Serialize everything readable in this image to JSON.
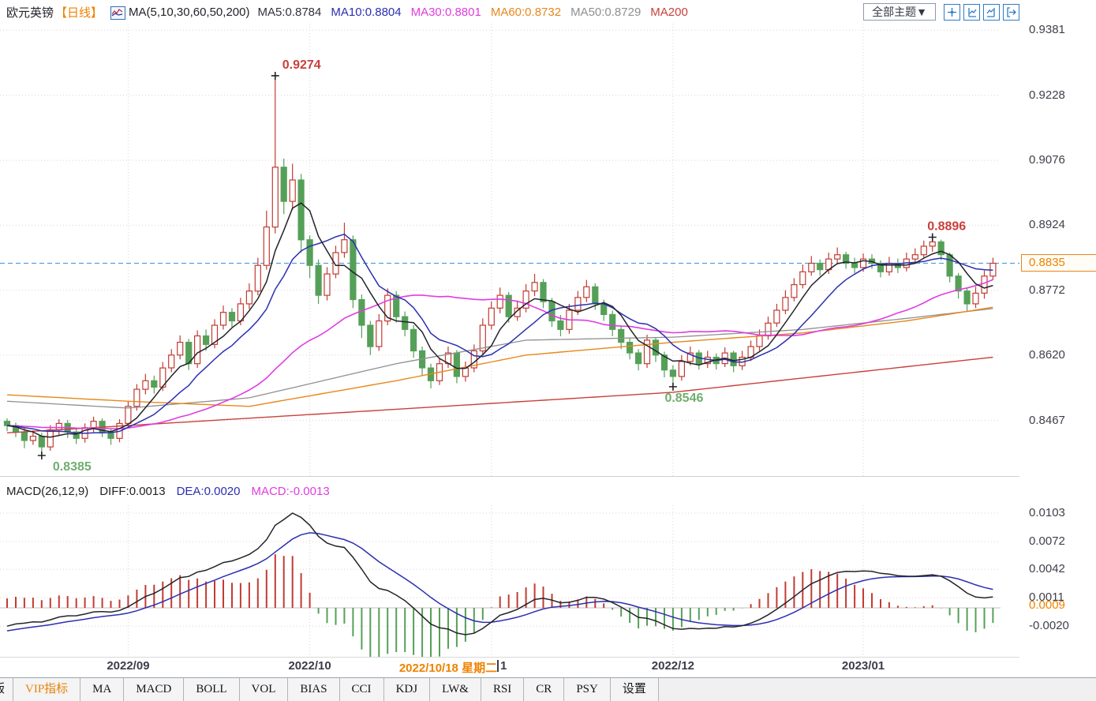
{
  "header": {
    "symbol": "欧元英镑",
    "period": "【日线】",
    "ma_settings": "MA(5,10,30,60,50,200)",
    "ma_values": [
      {
        "label": "MA5:0.8784",
        "color": "#33343a"
      },
      {
        "label": "MA10:0.8804",
        "color": "#2b2fb0"
      },
      {
        "label": "MA30:0.8801",
        "color": "#e03ce0"
      },
      {
        "label": "MA60:0.8732",
        "color": "#e8871c"
      },
      {
        "label": "MA50:0.8729",
        "color": "#8f8f8f"
      },
      {
        "label": "MA200",
        "color": "#c8403a"
      }
    ],
    "theme_dropdown": "全部主题▼",
    "icons": [
      "crosshair-tool",
      "y-axis-left",
      "y-axis-right",
      "export"
    ]
  },
  "price_axis": {
    "labels": [
      "0.9381",
      "0.9228",
      "0.9076",
      "0.8924",
      "0.8772",
      "0.8620",
      "0.8467"
    ],
    "current": "0.8835"
  },
  "macd_panel": {
    "title": "MACD(26,12,9)",
    "diff_label": "DIFF:0.0013",
    "dea_label": "DEA:0.0020",
    "macd_label": "MACD:-0.0013",
    "diff_color": "#23242a",
    "dea_color": "#2b2fb0",
    "macd_color": "#e03ce0",
    "axis_labels": [
      "0.0103",
      "0.0072",
      "0.0042",
      "0.0011",
      "-0.0020"
    ],
    "current": "0.0009"
  },
  "x_axis": {
    "crosshair_date": "2022/10/18 星期二",
    "occluded_remnant": "1"
  },
  "toolbar": {
    "partial_tab": "版",
    "tabs": [
      "VIP指标",
      "MA",
      "MACD",
      "BOLL",
      "VOL",
      "BIAS",
      "CCI",
      "KDJ",
      "LW&",
      "RSI",
      "CR",
      "PSY",
      "设置"
    ],
    "active_tab": "VIP指标"
  },
  "chart_data": {
    "type": "candlestick_with_macd",
    "symbol": "EUR/GBP 欧元英镑",
    "timeframe": "日线 (daily)",
    "price_axis_ticks": [
      0.9381,
      0.9228,
      0.9076,
      0.8924,
      0.8772,
      0.862,
      0.8467
    ],
    "current_price": 0.8835,
    "high_annotation": 0.9274,
    "swing_high_annotation": 0.8896,
    "swing_low_annotation": 0.8546,
    "low_annotation": 0.8385,
    "month_ticks": [
      {
        "label": "2022/09",
        "index": 14,
        "occluded": false
      },
      {
        "label": "2022/10",
        "index": 35,
        "occluded": false
      },
      {
        "label": "2022/11",
        "index": 56,
        "occluded": true
      },
      {
        "label": "2022/12",
        "index": 77,
        "occluded": false
      },
      {
        "label": "2023/01",
        "index": 99,
        "occluded": false
      }
    ],
    "crosshair": {
      "label": "2022/10/18 星期二",
      "index": 51
    },
    "annotations": [
      {
        "text": "0.9274",
        "value": 0.9274,
        "index": 31,
        "color": "#c8403a",
        "position": "above"
      },
      {
        "text": "0.8896",
        "value": 0.8896,
        "index": 107,
        "color": "#c8403a",
        "position": "above"
      },
      {
        "text": "0.8546",
        "value": 0.8546,
        "index": 77,
        "color": "#6fae6f",
        "position": "below"
      },
      {
        "text": "0.8385",
        "value": 0.8385,
        "index": 4,
        "color": "#6fae6f",
        "position": "below"
      }
    ],
    "candles": [
      [
        0.8465,
        0.8472,
        0.8442,
        0.8455
      ],
      [
        0.8455,
        0.8462,
        0.8428,
        0.844
      ],
      [
        0.844,
        0.845,
        0.8402,
        0.842
      ],
      [
        0.842,
        0.8444,
        0.841,
        0.843
      ],
      [
        0.843,
        0.8438,
        0.8385,
        0.8405
      ],
      [
        0.8405,
        0.8456,
        0.8396,
        0.8445
      ],
      [
        0.8445,
        0.847,
        0.8432,
        0.846
      ],
      [
        0.846,
        0.8468,
        0.8426,
        0.844
      ],
      [
        0.844,
        0.845,
        0.8412,
        0.8425
      ],
      [
        0.8425,
        0.846,
        0.8415,
        0.845
      ],
      [
        0.845,
        0.8476,
        0.844,
        0.8465
      ],
      [
        0.8465,
        0.8472,
        0.8428,
        0.844
      ],
      [
        0.844,
        0.8448,
        0.841,
        0.8425
      ],
      [
        0.8425,
        0.847,
        0.8416,
        0.846
      ],
      [
        0.846,
        0.8512,
        0.845,
        0.85
      ],
      [
        0.85,
        0.8552,
        0.849,
        0.854
      ],
      [
        0.854,
        0.8576,
        0.8528,
        0.856
      ],
      [
        0.856,
        0.8572,
        0.853,
        0.8545
      ],
      [
        0.8545,
        0.8604,
        0.8536,
        0.859
      ],
      [
        0.859,
        0.8634,
        0.858,
        0.862
      ],
      [
        0.862,
        0.8666,
        0.861,
        0.865
      ],
      [
        0.865,
        0.8658,
        0.8585,
        0.86
      ],
      [
        0.86,
        0.8678,
        0.859,
        0.8665
      ],
      [
        0.8665,
        0.868,
        0.863,
        0.8645
      ],
      [
        0.8645,
        0.8704,
        0.8636,
        0.869
      ],
      [
        0.869,
        0.8736,
        0.868,
        0.872
      ],
      [
        0.872,
        0.873,
        0.8686,
        0.87
      ],
      [
        0.87,
        0.8754,
        0.869,
        0.874
      ],
      [
        0.874,
        0.8788,
        0.8728,
        0.877
      ],
      [
        0.877,
        0.8848,
        0.876,
        0.883
      ],
      [
        0.883,
        0.8958,
        0.882,
        0.892
      ],
      [
        0.892,
        0.9274,
        0.8905,
        0.906
      ],
      [
        0.906,
        0.908,
        0.895,
        0.898
      ],
      [
        0.898,
        0.9068,
        0.896,
        0.903
      ],
      [
        0.903,
        0.9044,
        0.886,
        0.889
      ],
      [
        0.889,
        0.89,
        0.88,
        0.883
      ],
      [
        0.883,
        0.8844,
        0.874,
        0.876
      ],
      [
        0.876,
        0.8826,
        0.8748,
        0.881
      ],
      [
        0.881,
        0.8876,
        0.88,
        0.886
      ],
      [
        0.886,
        0.893,
        0.8848,
        0.889
      ],
      [
        0.889,
        0.89,
        0.873,
        0.875
      ],
      [
        0.875,
        0.8762,
        0.866,
        0.869
      ],
      [
        0.869,
        0.87,
        0.862,
        0.864
      ],
      [
        0.864,
        0.8716,
        0.863,
        0.87
      ],
      [
        0.87,
        0.8776,
        0.869,
        0.876
      ],
      [
        0.876,
        0.877,
        0.8696,
        0.871
      ],
      [
        0.871,
        0.8722,
        0.8664,
        0.868
      ],
      [
        0.868,
        0.869,
        0.8614,
        0.863
      ],
      [
        0.863,
        0.864,
        0.8572,
        0.859
      ],
      [
        0.859,
        0.86,
        0.8542,
        0.856
      ],
      [
        0.856,
        0.8614,
        0.855,
        0.86
      ],
      [
        0.86,
        0.864,
        0.859,
        0.8625
      ],
      [
        0.8625,
        0.8632,
        0.8554,
        0.857
      ],
      [
        0.857,
        0.8605,
        0.8558,
        0.859
      ],
      [
        0.859,
        0.8645,
        0.858,
        0.863
      ],
      [
        0.863,
        0.8706,
        0.862,
        0.869
      ],
      [
        0.869,
        0.8746,
        0.868,
        0.873
      ],
      [
        0.873,
        0.8778,
        0.8718,
        0.876
      ],
      [
        0.876,
        0.8768,
        0.8696,
        0.871
      ],
      [
        0.871,
        0.8748,
        0.87,
        0.873
      ],
      [
        0.873,
        0.8786,
        0.872,
        0.877
      ],
      [
        0.877,
        0.881,
        0.8758,
        0.879
      ],
      [
        0.879,
        0.8798,
        0.873,
        0.8745
      ],
      [
        0.8745,
        0.8754,
        0.8686,
        0.87
      ],
      [
        0.87,
        0.8714,
        0.8664,
        0.868
      ],
      [
        0.868,
        0.874,
        0.867,
        0.8725
      ],
      [
        0.8725,
        0.877,
        0.8714,
        0.8755
      ],
      [
        0.8755,
        0.8796,
        0.8744,
        0.878
      ],
      [
        0.878,
        0.8788,
        0.8726,
        0.874
      ],
      [
        0.874,
        0.875,
        0.87,
        0.8715
      ],
      [
        0.8715,
        0.8724,
        0.8664,
        0.868
      ],
      [
        0.868,
        0.869,
        0.8634,
        0.865
      ],
      [
        0.865,
        0.866,
        0.861,
        0.8625
      ],
      [
        0.8625,
        0.8634,
        0.8584,
        0.86
      ],
      [
        0.86,
        0.8668,
        0.859,
        0.8655
      ],
      [
        0.8655,
        0.8662,
        0.8604,
        0.862
      ],
      [
        0.862,
        0.8628,
        0.8568,
        0.8585
      ],
      [
        0.8585,
        0.8596,
        0.8546,
        0.857
      ],
      [
        0.857,
        0.862,
        0.856,
        0.8605
      ],
      [
        0.8605,
        0.864,
        0.8596,
        0.8625
      ],
      [
        0.8625,
        0.8632,
        0.8586,
        0.86
      ],
      [
        0.86,
        0.863,
        0.859,
        0.8615
      ],
      [
        0.8615,
        0.8624,
        0.8586,
        0.86
      ],
      [
        0.86,
        0.8638,
        0.8592,
        0.8625
      ],
      [
        0.8625,
        0.863,
        0.858,
        0.8595
      ],
      [
        0.8595,
        0.863,
        0.8585,
        0.8615
      ],
      [
        0.8615,
        0.8654,
        0.8606,
        0.864
      ],
      [
        0.864,
        0.868,
        0.863,
        0.8665
      ],
      [
        0.8665,
        0.871,
        0.8656,
        0.8695
      ],
      [
        0.8695,
        0.874,
        0.8686,
        0.8725
      ],
      [
        0.8725,
        0.8772,
        0.8716,
        0.8755
      ],
      [
        0.8755,
        0.88,
        0.8746,
        0.8785
      ],
      [
        0.8785,
        0.8832,
        0.8776,
        0.8815
      ],
      [
        0.8815,
        0.8852,
        0.8806,
        0.8835
      ],
      [
        0.8835,
        0.8844,
        0.8806,
        0.882
      ],
      [
        0.882,
        0.886,
        0.881,
        0.8845
      ],
      [
        0.8845,
        0.8872,
        0.8836,
        0.8855
      ],
      [
        0.8855,
        0.8862,
        0.8822,
        0.8835
      ],
      [
        0.8835,
        0.8848,
        0.8812,
        0.8825
      ],
      [
        0.8825,
        0.8858,
        0.8815,
        0.8845
      ],
      [
        0.8845,
        0.8856,
        0.8822,
        0.8835
      ],
      [
        0.8835,
        0.8842,
        0.8802,
        0.8815
      ],
      [
        0.8815,
        0.885,
        0.8806,
        0.8835
      ],
      [
        0.8835,
        0.8846,
        0.8812,
        0.8825
      ],
      [
        0.8825,
        0.886,
        0.8816,
        0.8845
      ],
      [
        0.8845,
        0.887,
        0.8836,
        0.8855
      ],
      [
        0.8855,
        0.8888,
        0.8846,
        0.8875
      ],
      [
        0.8875,
        0.8896,
        0.8862,
        0.8885
      ],
      [
        0.8885,
        0.889,
        0.8842,
        0.8855
      ],
      [
        0.8855,
        0.886,
        0.879,
        0.8805
      ],
      [
        0.8805,
        0.8812,
        0.8752,
        0.877
      ],
      [
        0.877,
        0.8778,
        0.8722,
        0.874
      ],
      [
        0.874,
        0.878,
        0.873,
        0.8765
      ],
      [
        0.8765,
        0.8818,
        0.8752,
        0.8805
      ],
      [
        0.8805,
        0.8848,
        0.8796,
        0.8835
      ]
    ],
    "ma_overlays_drawn": {
      "ma50": [
        [
          0,
          0.8512
        ],
        [
          14,
          0.8496
        ],
        [
          28,
          0.852
        ],
        [
          45,
          0.86
        ],
        [
          60,
          0.8655
        ],
        [
          77,
          0.8662
        ],
        [
          92,
          0.868
        ],
        [
          104,
          0.8706
        ],
        [
          114,
          0.8729
        ]
      ],
      "ma60": [
        [
          0,
          0.8527
        ],
        [
          14,
          0.8512
        ],
        [
          28,
          0.85
        ],
        [
          45,
          0.856
        ],
        [
          60,
          0.862
        ],
        [
          77,
          0.865
        ],
        [
          92,
          0.8672
        ],
        [
          104,
          0.87
        ],
        [
          114,
          0.8732
        ]
      ],
      "ma200": [
        [
          0,
          0.8438
        ],
        [
          40,
          0.8487
        ],
        [
          77,
          0.8533
        ],
        [
          114,
          0.8615
        ]
      ]
    },
    "macd": {
      "fast": 12,
      "slow": 26,
      "signal": 9,
      "axis_ticks": [
        0.0103,
        0.0072,
        0.0042,
        0.0011,
        -0.002
      ],
      "current": 0.0009
    },
    "colors": {
      "up": "#c23b32",
      "down": "#55a058",
      "ma5": "#23242a",
      "ma10": "#2b2fb0",
      "ma30": "#e03ce0",
      "ma60": "#e8871c",
      "ma50": "#909090",
      "ma200": "#c8403a",
      "diff": "#23242a",
      "dea": "#2b2fb0",
      "hist_up": "#c23b32",
      "hist_down": "#55a058",
      "dashed_price_line": "#56a0dc",
      "grid": "#ddd2d2",
      "accent_orange": "#ef8200"
    }
  }
}
